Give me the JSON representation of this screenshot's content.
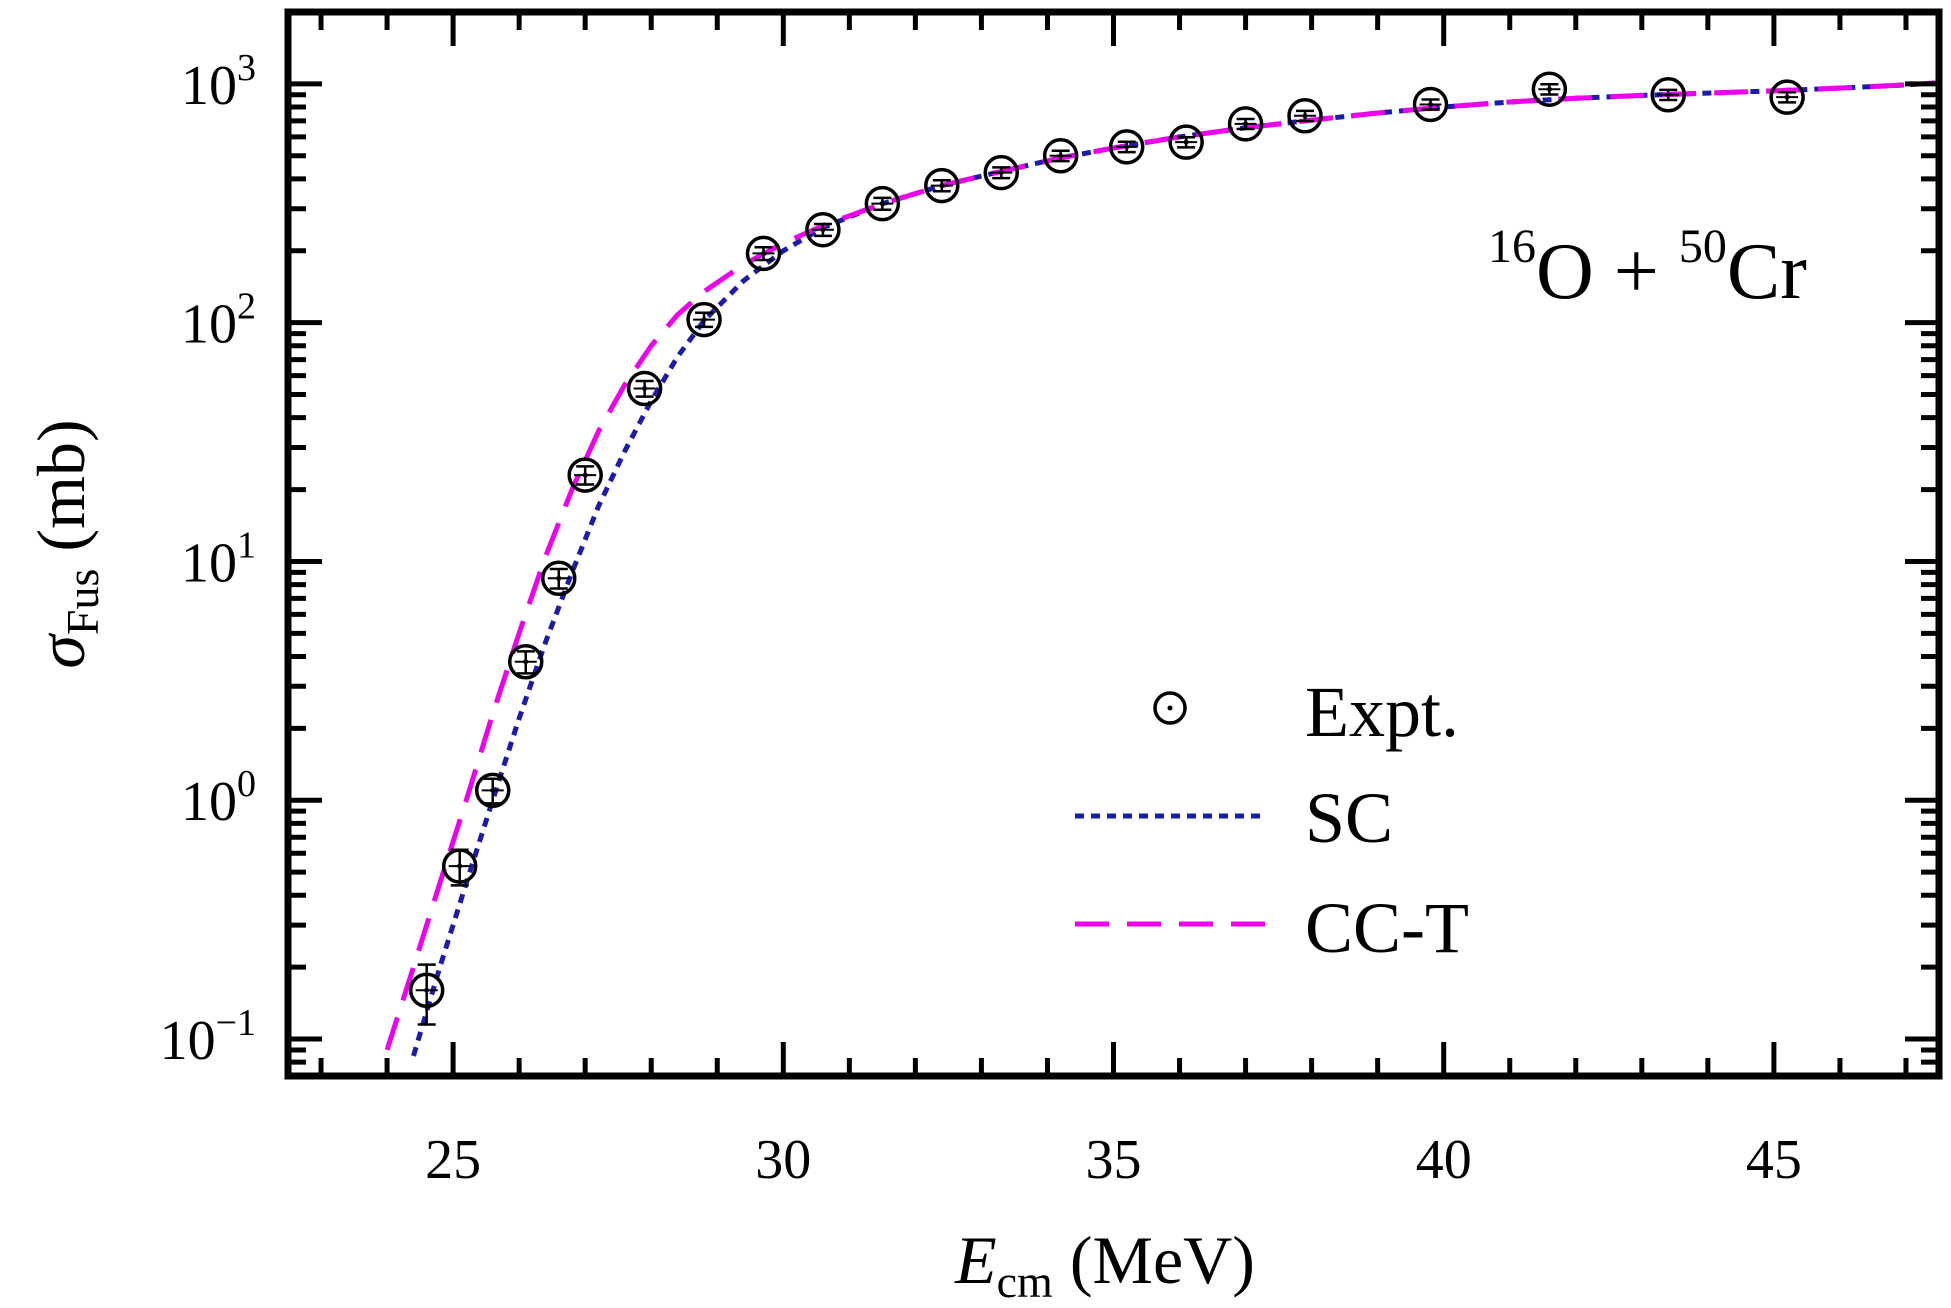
{
  "chart_data": {
    "type": "scatter",
    "annotation": {
      "parts": [
        {
          "kind": "sup",
          "text": "16"
        },
        {
          "kind": "base",
          "text": "O  + "
        },
        {
          "kind": "sup",
          "text": "50"
        },
        {
          "kind": "base",
          "text": "Cr"
        }
      ]
    },
    "xaxis": {
      "label_main": "E",
      "label_sub": "cm",
      "label_unit": " (MeV)",
      "range": [
        22.5,
        47.5
      ],
      "ticks": [
        25,
        30,
        35,
        40,
        45
      ],
      "tick_labels": [
        "25",
        "30",
        "35",
        "40",
        "45"
      ]
    },
    "yaxis": {
      "scale": "log",
      "label_main": "σ",
      "label_sub": "Fus",
      "label_unit": " (mb)",
      "range": [
        0.07,
        2000
      ],
      "ticks": [
        0.1,
        1,
        10,
        100,
        1000
      ],
      "tick_labels": [
        {
          "base": "10",
          "exp": "−1"
        },
        {
          "base": "10",
          "exp": "0"
        },
        {
          "base": "10",
          "exp": "1"
        },
        {
          "base": "10",
          "exp": "2"
        },
        {
          "base": "10",
          "exp": "3"
        }
      ]
    },
    "grid": false,
    "legend_position": "lower-right",
    "legend": [
      {
        "key": "expt",
        "label": "Expt."
      },
      {
        "key": "sc",
        "label": "SC"
      },
      {
        "key": "cct",
        "label": "CC-T"
      }
    ],
    "series": [
      {
        "name": "Expt.",
        "style": "open-circle-with-errorbars",
        "color": "#000000",
        "x": [
          24.6,
          25.1,
          25.6,
          26.1,
          26.6,
          27.0,
          27.9,
          28.8,
          29.7,
          30.6,
          31.5,
          32.4,
          33.3,
          34.2,
          35.2,
          36.1,
          37.0,
          37.9,
          39.8,
          41.6,
          43.4,
          45.2
        ],
        "y": [
          0.16,
          0.53,
          1.1,
          3.8,
          8.5,
          23,
          53,
          103,
          195,
          245,
          315,
          375,
          425,
          500,
          545,
          570,
          680,
          735,
          820,
          950,
          900,
          880
        ],
        "yerr": [
          0.045,
          0.09,
          0.13,
          0.4,
          0.8,
          2,
          4,
          7,
          12,
          14,
          18,
          20,
          22,
          25,
          27,
          28,
          33,
          36,
          40,
          47,
          44,
          43
        ]
      },
      {
        "name": "SC",
        "style": "dotted",
        "color": "#1c1ca8",
        "x": [
          24.4,
          24.8,
          25.2,
          25.6,
          26.0,
          26.4,
          26.8,
          27.2,
          27.6,
          28.0,
          28.4,
          28.8,
          29.4,
          30.0,
          30.6,
          31.5,
          32.4,
          33.3,
          34.2,
          35.1,
          36.0,
          37.0,
          38.0,
          39.0,
          40.0,
          41.0,
          42.0,
          43.0,
          44.0,
          45.0,
          46.0,
          47.0,
          47.5
        ],
        "y": [
          0.085,
          0.2,
          0.45,
          1.0,
          2.2,
          4.6,
          9.0,
          17,
          29,
          47,
          72,
          102,
          150,
          200,
          250,
          315,
          375,
          430,
          490,
          545,
          600,
          655,
          705,
          755,
          800,
          840,
          870,
          895,
          915,
          935,
          960,
          990,
          1010
        ]
      },
      {
        "name": "CC-T",
        "style": "dashed",
        "color": "#ee00ee",
        "x": [
          24.0,
          24.4,
          24.8,
          25.2,
          25.6,
          26.0,
          26.4,
          26.8,
          27.2,
          27.6,
          28.0,
          28.4,
          28.8,
          29.4,
          30.0,
          30.6,
          31.5,
          32.4,
          33.3,
          34.2,
          35.1,
          36.0,
          37.0,
          38.0,
          39.0,
          40.0,
          41.0,
          42.0,
          43.0,
          44.0,
          45.0,
          46.0,
          47.0,
          47.5
        ],
        "y": [
          0.09,
          0.2,
          0.45,
          1.0,
          2.3,
          5.0,
          10.5,
          20,
          35,
          55,
          80,
          108,
          135,
          175,
          215,
          255,
          315,
          375,
          430,
          490,
          545,
          600,
          655,
          705,
          755,
          800,
          840,
          870,
          895,
          915,
          935,
          960,
          990,
          1010
        ]
      }
    ]
  }
}
